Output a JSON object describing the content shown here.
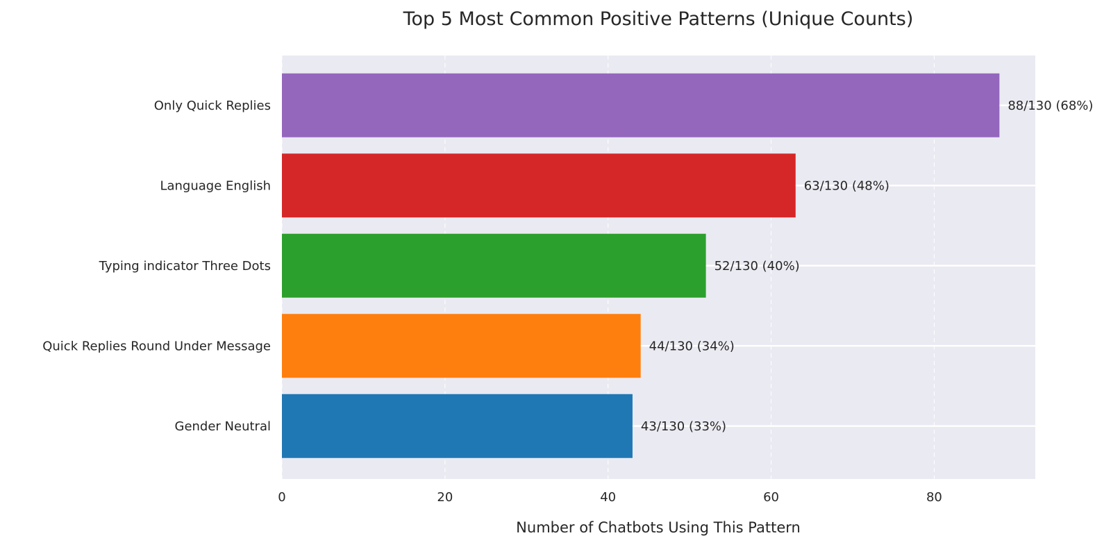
{
  "chart_data": {
    "type": "bar",
    "orientation": "horizontal",
    "title": "Top 5 Most Common Positive Patterns (Unique Counts)",
    "xlabel": "Number of Chatbots Using This Pattern",
    "ylabel": "",
    "xlim": [
      0,
      92.4
    ],
    "xticks": [
      0,
      20,
      40,
      60,
      80
    ],
    "categories": [
      "Only Quick Replies",
      "Language English",
      "Typing indicator Three Dots",
      "Quick Replies Round Under Message",
      "Gender Neutral"
    ],
    "values": [
      88,
      63,
      52,
      44,
      43
    ],
    "labels": [
      "88/130 (68%)",
      "63/130 (48%)",
      "52/130 (40%)",
      "44/130 (34%)",
      "43/130 (33%)"
    ],
    "colors": [
      "#9467bd",
      "#d62728",
      "#2ca02c",
      "#ff7f0e",
      "#1f77b4"
    ],
    "background_color": "#eaeaf2",
    "grid": true,
    "legend": "none"
  }
}
